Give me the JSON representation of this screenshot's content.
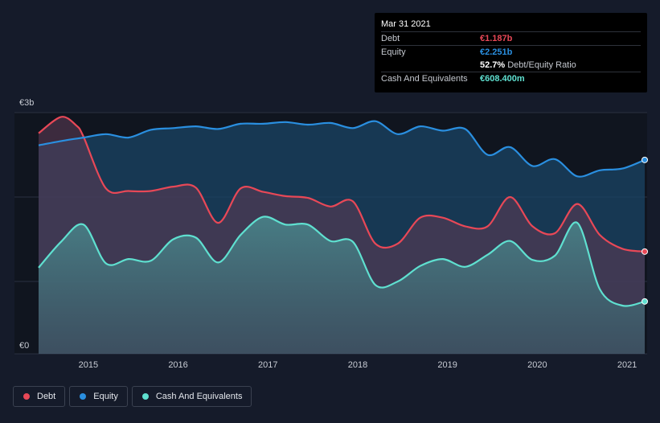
{
  "chart_data": {
    "type": "area",
    "currency_unit": "€b",
    "ylim": [
      0,
      2.8
    ],
    "y_tick_labels": [
      {
        "value": 2.8,
        "label": "€3b"
      },
      {
        "value": 0,
        "label": "€0"
      }
    ],
    "x_tick_labels": [
      {
        "value": 2015,
        "label": "2015"
      },
      {
        "value": 2016,
        "label": "2016"
      },
      {
        "value": 2017,
        "label": "2017"
      },
      {
        "value": 2018,
        "label": "2018"
      },
      {
        "value": 2019,
        "label": "2019"
      },
      {
        "value": 2020,
        "label": "2020"
      },
      {
        "value": 2021,
        "label": "2021"
      }
    ],
    "xlim": [
      2014.5,
      2021.25
    ],
    "grid": true,
    "legend_position": "bottom-left",
    "series": [
      {
        "name": "Debt",
        "color": "#e84857",
        "points": [
          [
            2014.5,
            2.56
          ],
          [
            2014.75,
            2.75
          ],
          [
            2014.92,
            2.65
          ],
          [
            2015.0,
            2.52
          ],
          [
            2015.25,
            1.92
          ],
          [
            2015.5,
            1.89
          ],
          [
            2015.75,
            1.89
          ],
          [
            2016.0,
            1.94
          ],
          [
            2016.25,
            1.93
          ],
          [
            2016.5,
            1.52
          ],
          [
            2016.75,
            1.92
          ],
          [
            2017.0,
            1.88
          ],
          [
            2017.25,
            1.83
          ],
          [
            2017.5,
            1.81
          ],
          [
            2017.75,
            1.71
          ],
          [
            2018.0,
            1.77
          ],
          [
            2018.25,
            1.28
          ],
          [
            2018.5,
            1.28
          ],
          [
            2018.75,
            1.58
          ],
          [
            2019.0,
            1.58
          ],
          [
            2019.25,
            1.48
          ],
          [
            2019.5,
            1.48
          ],
          [
            2019.75,
            1.82
          ],
          [
            2020.0,
            1.48
          ],
          [
            2020.25,
            1.4
          ],
          [
            2020.5,
            1.74
          ],
          [
            2020.75,
            1.38
          ],
          [
            2021.0,
            1.22
          ],
          [
            2021.25,
            1.187
          ]
        ]
      },
      {
        "name": "Equity",
        "color": "#2a8fe0",
        "points": [
          [
            2014.5,
            2.42
          ],
          [
            2014.75,
            2.47
          ],
          [
            2015.0,
            2.51
          ],
          [
            2015.25,
            2.55
          ],
          [
            2015.5,
            2.51
          ],
          [
            2015.75,
            2.6
          ],
          [
            2016.0,
            2.62
          ],
          [
            2016.25,
            2.64
          ],
          [
            2016.5,
            2.61
          ],
          [
            2016.75,
            2.67
          ],
          [
            2017.0,
            2.67
          ],
          [
            2017.25,
            2.69
          ],
          [
            2017.5,
            2.66
          ],
          [
            2017.75,
            2.68
          ],
          [
            2018.0,
            2.62
          ],
          [
            2018.25,
            2.7
          ],
          [
            2018.5,
            2.55
          ],
          [
            2018.75,
            2.64
          ],
          [
            2019.0,
            2.59
          ],
          [
            2019.25,
            2.61
          ],
          [
            2019.5,
            2.31
          ],
          [
            2019.75,
            2.4
          ],
          [
            2020.0,
            2.18
          ],
          [
            2020.25,
            2.26
          ],
          [
            2020.5,
            2.06
          ],
          [
            2020.75,
            2.13
          ],
          [
            2021.0,
            2.15
          ],
          [
            2021.25,
            2.251
          ]
        ]
      },
      {
        "name": "Cash And Equivalents",
        "color": "#5fe0d0",
        "points": [
          [
            2014.5,
            1.0
          ],
          [
            2014.75,
            1.3
          ],
          [
            2015.0,
            1.5
          ],
          [
            2015.25,
            1.05
          ],
          [
            2015.5,
            1.1
          ],
          [
            2015.75,
            1.08
          ],
          [
            2016.0,
            1.33
          ],
          [
            2016.25,
            1.35
          ],
          [
            2016.5,
            1.06
          ],
          [
            2016.75,
            1.38
          ],
          [
            2017.0,
            1.59
          ],
          [
            2017.25,
            1.5
          ],
          [
            2017.5,
            1.5
          ],
          [
            2017.75,
            1.31
          ],
          [
            2018.0,
            1.3
          ],
          [
            2018.25,
            0.8
          ],
          [
            2018.5,
            0.84
          ],
          [
            2018.75,
            1.02
          ],
          [
            2019.0,
            1.1
          ],
          [
            2019.25,
            1.01
          ],
          [
            2019.5,
            1.15
          ],
          [
            2019.75,
            1.31
          ],
          [
            2020.0,
            1.09
          ],
          [
            2020.25,
            1.14
          ],
          [
            2020.5,
            1.52
          ],
          [
            2020.75,
            0.75
          ],
          [
            2021.0,
            0.56
          ],
          [
            2021.25,
            0.608
          ]
        ]
      }
    ]
  },
  "tooltip": {
    "date": "Mar 31 2021",
    "rows": [
      {
        "key": "Debt",
        "value": "€1.187b",
        "color": "#e84857"
      },
      {
        "key": "Equity",
        "value": "€2.251b",
        "color": "#2a8fe0"
      },
      {
        "key": "",
        "value": "52.7%",
        "sub": "Debt/Equity Ratio",
        "color": "#ffffff"
      },
      {
        "key": "Cash And Equivalents",
        "value": "€608.400m",
        "color": "#5fe0d0"
      }
    ]
  },
  "legend": [
    {
      "label": "Debt",
      "color": "#e84857"
    },
    {
      "label": "Equity",
      "color": "#2a8fe0"
    },
    {
      "label": "Cash And Equivalents",
      "color": "#5fe0d0"
    }
  ]
}
